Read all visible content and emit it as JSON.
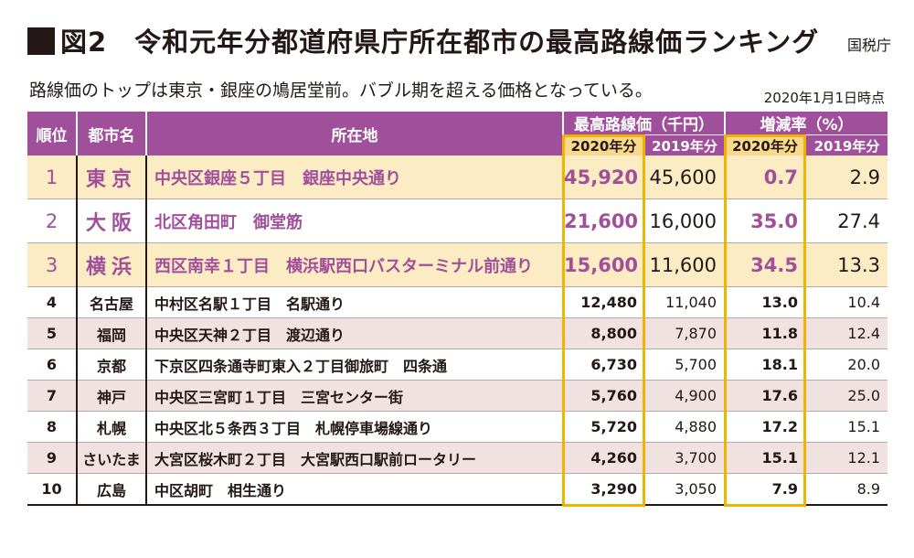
{
  "header": {
    "title": "図2　令和元年分都道府県庁所在都市の最高路線価ランキング",
    "source": "国税庁",
    "subtitle": "路線価のトップは東京・銀座の鳩居堂前。バブル期を超える価格となっている。",
    "as_of": "2020年1月1日時点"
  },
  "colors": {
    "header_purple": "#a0509a",
    "highlight_yellow": "#f9d98a",
    "highlight_border": "#f0b400",
    "top_row_shade": "#fbecc4",
    "row_shade": "#efe2e0"
  },
  "table": {
    "columns": {
      "rank": "順位",
      "city": "都市名",
      "location": "所在地",
      "price_group": "最高路線価（千円）",
      "growth_group": "増減率（%）",
      "y2020": "2020年分",
      "y2019": "2019年分"
    },
    "rows": [
      {
        "rank": "1",
        "city": "東京",
        "location": "中央区銀座５丁目　銀座中央通り",
        "price_2020": "45,920",
        "price_2019": "45,600",
        "growth_2020": "0.7",
        "growth_2019": "2.9"
      },
      {
        "rank": "2",
        "city": "大阪",
        "location": "北区角田町　御堂筋",
        "price_2020": "21,600",
        "price_2019": "16,000",
        "growth_2020": "35.0",
        "growth_2019": "27.4"
      },
      {
        "rank": "3",
        "city": "横浜",
        "location": "西区南幸１丁目　横浜駅西口バスターミナル前通り",
        "price_2020": "15,600",
        "price_2019": "11,600",
        "growth_2020": "34.5",
        "growth_2019": "13.3"
      },
      {
        "rank": "4",
        "city": "名古屋",
        "location": "中村区名駅１丁目　名駅通り",
        "price_2020": "12,480",
        "price_2019": "11,040",
        "growth_2020": "13.0",
        "growth_2019": "10.4"
      },
      {
        "rank": "5",
        "city": "福岡",
        "location": "中央区天神２丁目　渡辺通り",
        "price_2020": "8,800",
        "price_2019": "7,870",
        "growth_2020": "11.8",
        "growth_2019": "12.4"
      },
      {
        "rank": "6",
        "city": "京都",
        "location": "下京区四条通寺町東入２丁目御旅町　四条通",
        "price_2020": "6,730",
        "price_2019": "5,700",
        "growth_2020": "18.1",
        "growth_2019": "20.0"
      },
      {
        "rank": "7",
        "city": "神戸",
        "location": "中央区三宮町１丁目　三宮センター街",
        "price_2020": "5,760",
        "price_2019": "4,900",
        "growth_2020": "17.6",
        "growth_2019": "25.0"
      },
      {
        "rank": "8",
        "city": "札幌",
        "location": "中央区北５条西３丁目　札幌停車場線通り",
        "price_2020": "5,720",
        "price_2019": "4,880",
        "growth_2020": "17.2",
        "growth_2019": "15.1"
      },
      {
        "rank": "9",
        "city": "さいたま",
        "location": "大宮区桜木町２丁目　大宮駅西口駅前ロータリー",
        "price_2020": "4,260",
        "price_2019": "3,700",
        "growth_2020": "15.1",
        "growth_2019": "12.1"
      },
      {
        "rank": "10",
        "city": "広島",
        "location": "中区胡町　相生通り",
        "price_2020": "3,290",
        "price_2019": "3,050",
        "growth_2020": "7.9",
        "growth_2019": "8.9"
      }
    ]
  }
}
